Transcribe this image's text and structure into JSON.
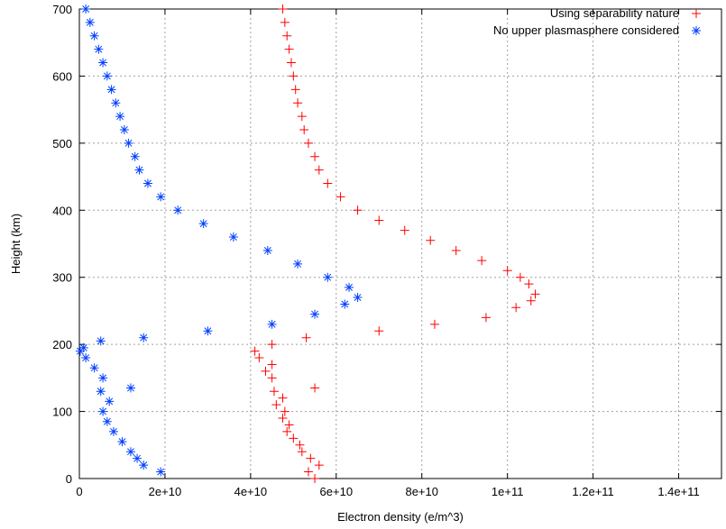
{
  "chart_data": {
    "type": "scatter",
    "title": "",
    "xlabel": "Electron density (e/m^3)",
    "ylabel": "Height (km)",
    "xlim": [
      0,
      150000000000.0
    ],
    "ylim": [
      0,
      700
    ],
    "x_ticks": [
      0,
      20000000000.0,
      40000000000.0,
      60000000000.0,
      80000000000.0,
      100000000000.0,
      120000000000.0,
      140000000000.0
    ],
    "x_tick_labels": [
      "0",
      "2e+10",
      "4e+10",
      "6e+10",
      "8e+10",
      "1e+11",
      "1.2e+11",
      "1.4e+11"
    ],
    "y_ticks": [
      0,
      100,
      200,
      300,
      400,
      500,
      600,
      700
    ],
    "y_tick_labels": [
      "0",
      "100",
      "200",
      "300",
      "400",
      "500",
      "600",
      "700"
    ],
    "grid": true,
    "legend_position": "top-right",
    "series": [
      {
        "name": "Using separability nature",
        "marker": "plus",
        "color": "#ff0000",
        "points": [
          [
            55000000000.0,
            0
          ],
          [
            53500000000.0,
            10
          ],
          [
            56000000000.0,
            20
          ],
          [
            54000000000.0,
            30
          ],
          [
            52000000000.0,
            40
          ],
          [
            51500000000.0,
            50
          ],
          [
            50000000000.0,
            60
          ],
          [
            48500000000.0,
            70
          ],
          [
            49000000000.0,
            80
          ],
          [
            47500000000.0,
            90
          ],
          [
            48000000000.0,
            100
          ],
          [
            46000000000.0,
            110
          ],
          [
            47500000000.0,
            120
          ],
          [
            45500000000.0,
            130
          ],
          [
            55000000000.0,
            135
          ],
          [
            45000000000.0,
            150
          ],
          [
            43500000000.0,
            160
          ],
          [
            45000000000.0,
            170
          ],
          [
            42000000000.0,
            180
          ],
          [
            41000000000.0,
            190
          ],
          [
            45000000000.0,
            200
          ],
          [
            53000000000.0,
            210
          ],
          [
            70000000000.0,
            220
          ],
          [
            83000000000.0,
            230
          ],
          [
            95000000000.0,
            240
          ],
          [
            102000000000.0,
            255
          ],
          [
            105500000000.0,
            265
          ],
          [
            106500000000.0,
            275
          ],
          [
            105000000000.0,
            290
          ],
          [
            103000000000.0,
            300
          ],
          [
            100000000000.0,
            310
          ],
          [
            94000000000.0,
            325
          ],
          [
            88000000000.0,
            340
          ],
          [
            82000000000.0,
            355
          ],
          [
            76000000000.0,
            370
          ],
          [
            70000000000.0,
            385
          ],
          [
            65000000000.0,
            400
          ],
          [
            61000000000.0,
            420
          ],
          [
            58000000000.0,
            440
          ],
          [
            56000000000.0,
            460
          ],
          [
            55000000000.0,
            480
          ],
          [
            53500000000.0,
            500
          ],
          [
            52500000000.0,
            520
          ],
          [
            52000000000.0,
            540
          ],
          [
            51000000000.0,
            560
          ],
          [
            50500000000.0,
            580
          ],
          [
            50000000000.0,
            600
          ],
          [
            49500000000.0,
            620
          ],
          [
            49000000000.0,
            640
          ],
          [
            48500000000.0,
            660
          ],
          [
            48000000000.0,
            680
          ],
          [
            47500000000.0,
            700
          ]
        ]
      },
      {
        "name": "No upper plasmasphere considered",
        "marker": "star",
        "color": "#0040ff",
        "points": [
          [
            19000000000.0,
            10
          ],
          [
            15000000000.0,
            20
          ],
          [
            13500000000.0,
            30
          ],
          [
            12000000000.0,
            40
          ],
          [
            10000000000.0,
            55
          ],
          [
            8000000000.0,
            70
          ],
          [
            6500000000.0,
            85
          ],
          [
            5500000000.0,
            100
          ],
          [
            7000000000.0,
            115
          ],
          [
            5000000000.0,
            130
          ],
          [
            12000000000.0,
            135
          ],
          [
            5500000000.0,
            150
          ],
          [
            3500000000.0,
            165
          ],
          [
            1500000000.0,
            180
          ],
          [
            200000000.0,
            190
          ],
          [
            1000000000.0,
            195
          ],
          [
            5000000000.0,
            205
          ],
          [
            15000000000.0,
            210
          ],
          [
            30000000000.0,
            220
          ],
          [
            45000000000.0,
            230
          ],
          [
            55000000000.0,
            245
          ],
          [
            62000000000.0,
            260
          ],
          [
            65000000000.0,
            270
          ],
          [
            63000000000.0,
            285
          ],
          [
            58000000000.0,
            300
          ],
          [
            51000000000.0,
            320
          ],
          [
            44000000000.0,
            340
          ],
          [
            36000000000.0,
            360
          ],
          [
            29000000000.0,
            380
          ],
          [
            23000000000.0,
            400
          ],
          [
            19000000000.0,
            420
          ],
          [
            16000000000.0,
            440
          ],
          [
            14000000000.0,
            460
          ],
          [
            13000000000.0,
            480
          ],
          [
            11500000000.0,
            500
          ],
          [
            10500000000.0,
            520
          ],
          [
            9500000000.0,
            540
          ],
          [
            8500000000.0,
            560
          ],
          [
            7500000000.0,
            580
          ],
          [
            6500000000.0,
            600
          ],
          [
            5500000000.0,
            620
          ],
          [
            4500000000.0,
            640
          ],
          [
            3500000000.0,
            660
          ],
          [
            2500000000.0,
            680
          ],
          [
            1500000000.0,
            700
          ]
        ]
      }
    ]
  }
}
